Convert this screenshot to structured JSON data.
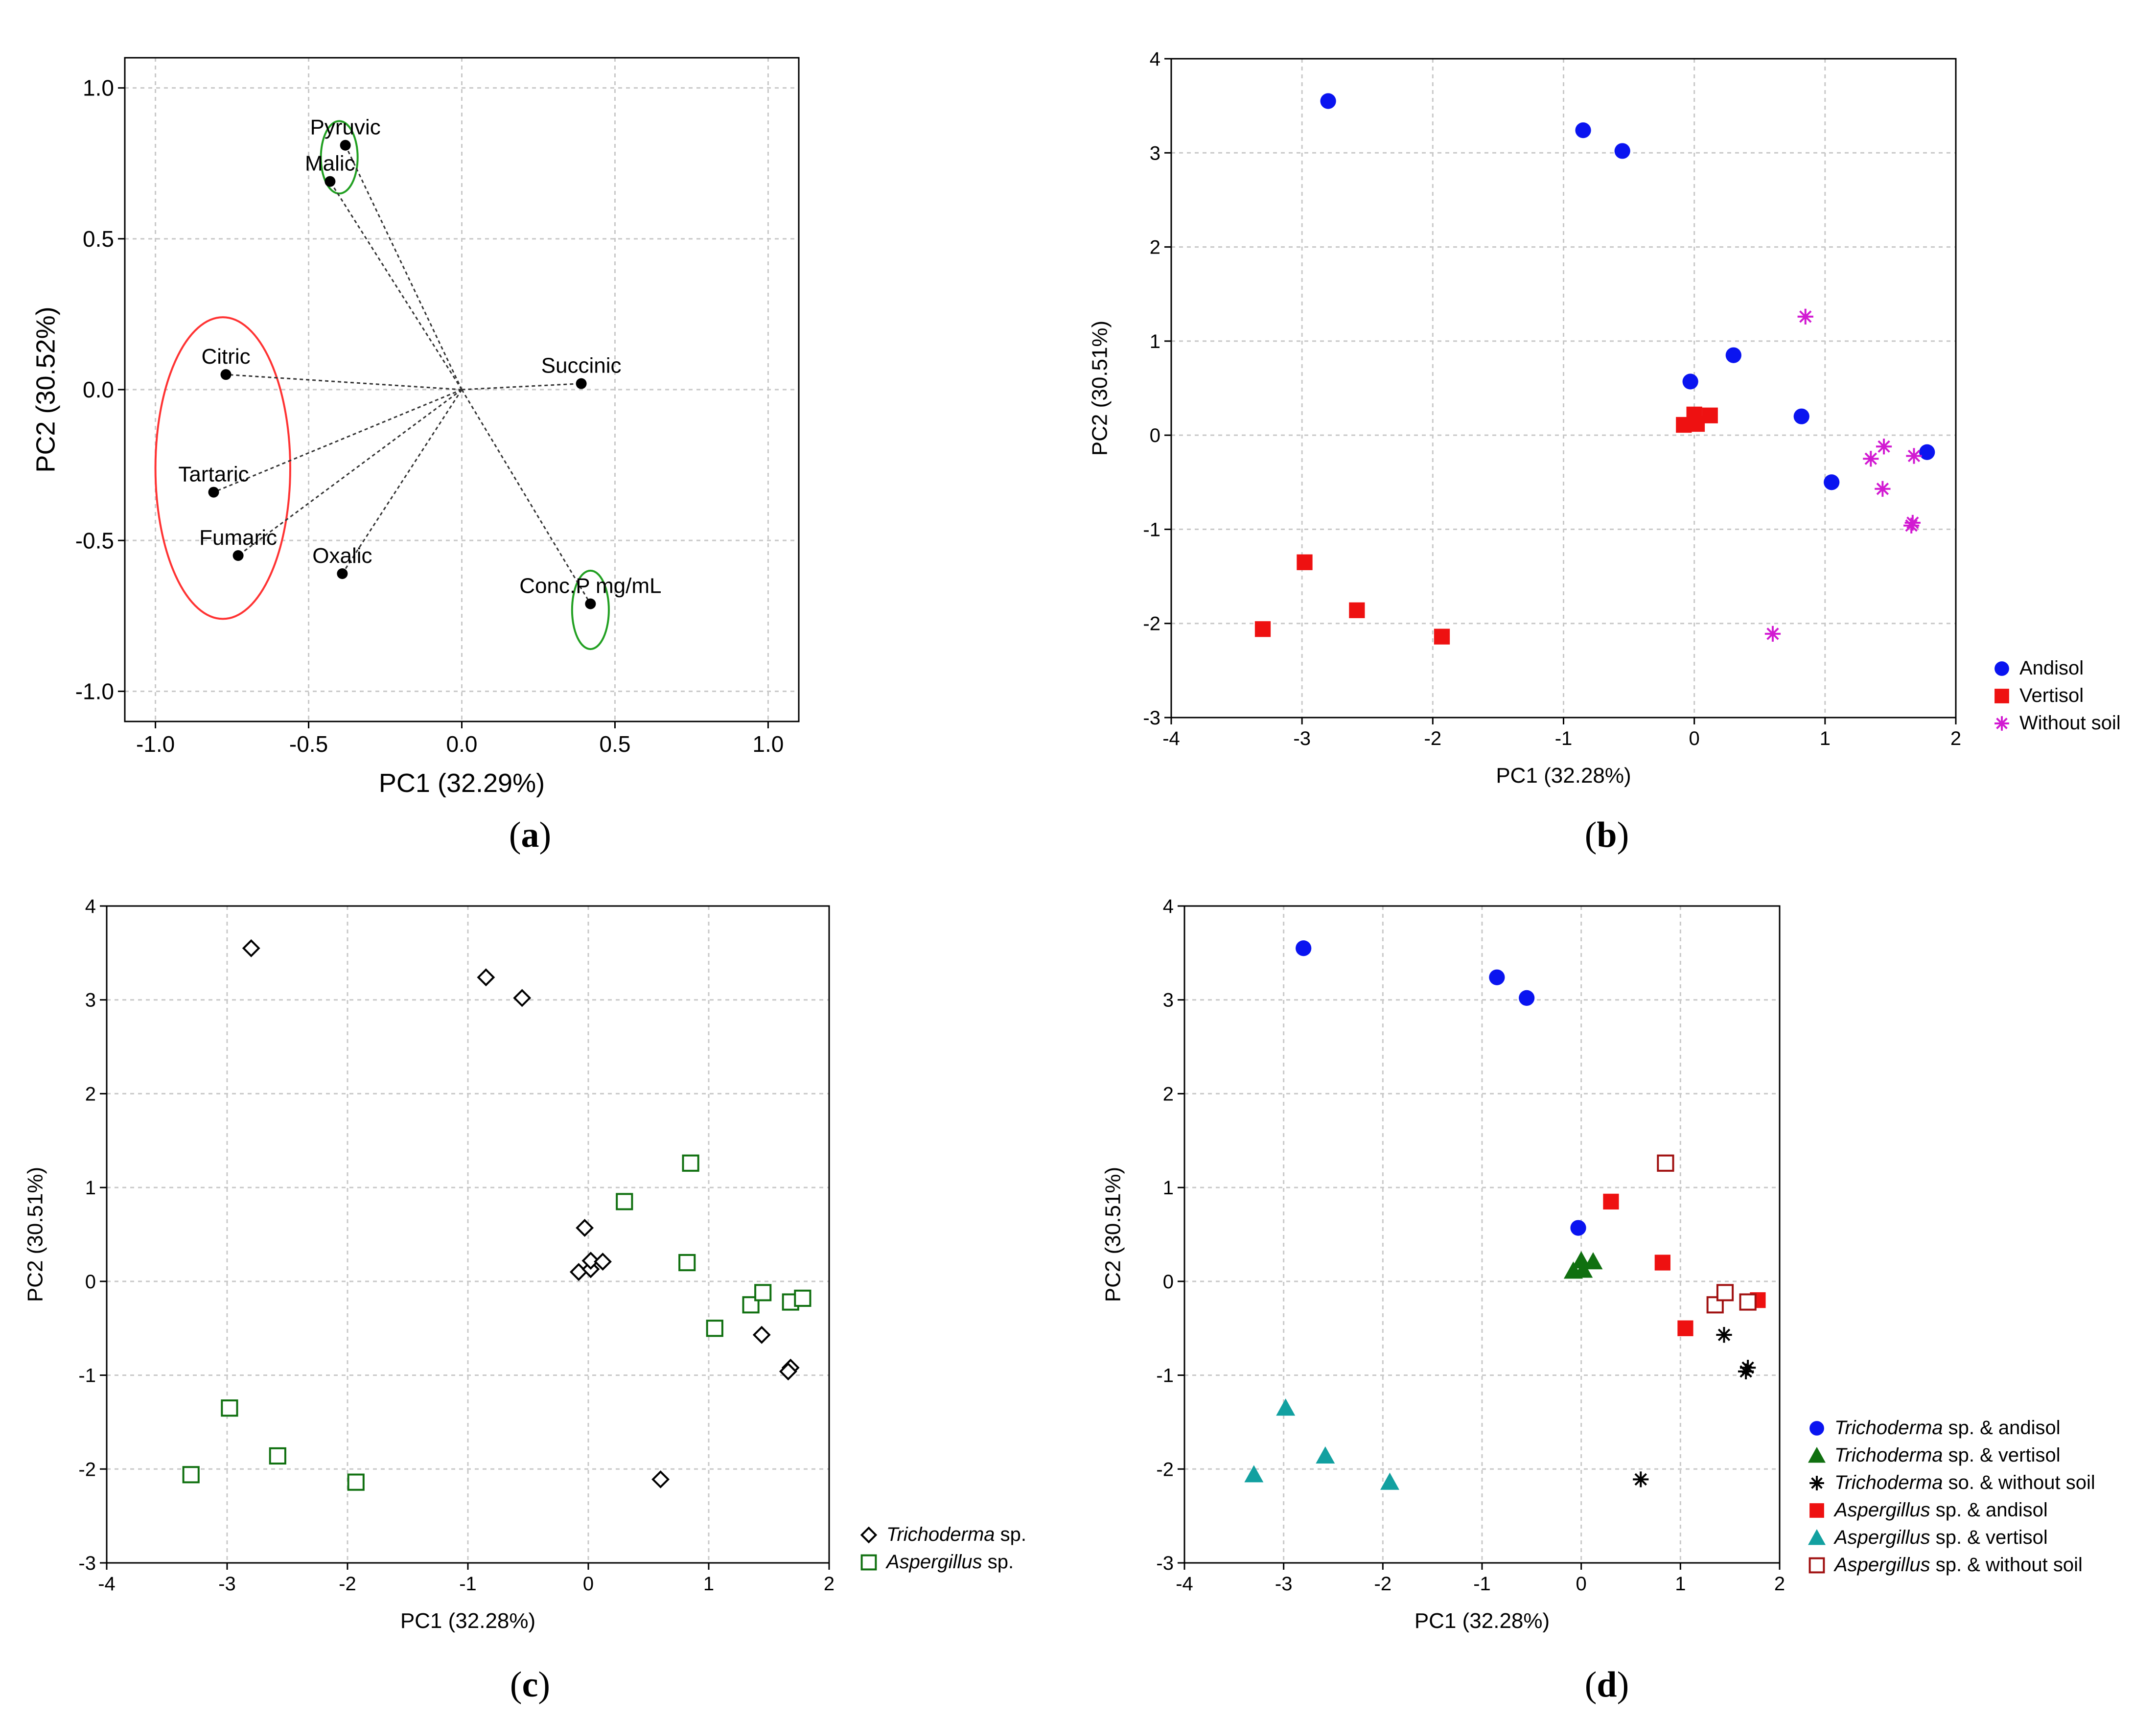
{
  "figure": {
    "panel_labels": {
      "a": "a",
      "b": "b",
      "c": "c",
      "d": "d"
    }
  },
  "colors": {
    "blue": "#0a14f0",
    "red": "#ee1111",
    "magenta": "#d21ad2",
    "green": "#107010",
    "teal": "#12a0a0",
    "darkred": "#a01010",
    "black": "#000000",
    "grid": "#c8c8c8",
    "ellipse_red": "#ff3333",
    "ellipse_green": "#22a022"
  },
  "chart_data": [
    {
      "id": "a",
      "type": "scatter",
      "title": "",
      "xlabel": "PC1 (32.29%)",
      "ylabel": "PC2 (30.52%)",
      "xlim": [
        -1.1,
        1.1
      ],
      "ylim": [
        -1.1,
        1.1
      ],
      "xticks": [
        -1.0,
        -0.5,
        0.0,
        0.5,
        1.0
      ],
      "xtick_labels": [
        "-1.0",
        "-0.5",
        "0.0",
        "0.5",
        "1.0"
      ],
      "yticks": [
        -1.0,
        -0.5,
        0.0,
        0.5,
        1.0
      ],
      "ytick_labels": [
        "-1.0",
        "-0.5",
        "0.0",
        "0.5",
        "1.0"
      ],
      "grid": true,
      "loadings": [
        {
          "label": "Pyruvic",
          "x": -0.38,
          "y": 0.81
        },
        {
          "label": "Malic",
          "x": -0.43,
          "y": 0.69
        },
        {
          "label": "Citric",
          "x": -0.77,
          "y": 0.05
        },
        {
          "label": "Succinic",
          "x": 0.39,
          "y": 0.02
        },
        {
          "label": "Tartaric",
          "x": -0.81,
          "y": -0.34
        },
        {
          "label": "Fumaric",
          "x": -0.73,
          "y": -0.55
        },
        {
          "label": "Oxalic",
          "x": -0.39,
          "y": -0.61
        },
        {
          "label": "Conc.P mg/mL",
          "x": 0.42,
          "y": -0.71
        }
      ],
      "ellipses": [
        {
          "color": "ellipse_red",
          "cx": -0.78,
          "cy": -0.26,
          "rx": 0.22,
          "ry": 0.5
        },
        {
          "color": "ellipse_green",
          "cx": -0.4,
          "cy": 0.77,
          "rx": 0.06,
          "ry": 0.12
        },
        {
          "color": "ellipse_green",
          "cx": 0.42,
          "cy": -0.73,
          "rx": 0.06,
          "ry": 0.13
        }
      ]
    },
    {
      "id": "b",
      "type": "scatter",
      "title": "",
      "xlabel": "PC1 (32.28%)",
      "ylabel": "PC2 (30.51%)",
      "xlim": [
        -4,
        2
      ],
      "ylim": [
        -3,
        4
      ],
      "xticks": [
        -4,
        -3,
        -2,
        -1,
        0,
        1,
        2
      ],
      "xtick_labels": [
        "-4",
        "-3",
        "-2",
        "-1",
        "0",
        "1",
        "2"
      ],
      "yticks": [
        -3,
        -2,
        -1,
        0,
        1,
        2,
        3,
        4
      ],
      "ytick_labels": [
        "-3",
        "-2",
        "-1",
        "0",
        "1",
        "2",
        "3",
        "4"
      ],
      "grid": true,
      "legend_position": "outside-bottom-right",
      "series": [
        {
          "name": "Andisol",
          "italic": "",
          "marker": "circle",
          "color": "blue",
          "points": [
            [
              -2.8,
              3.55
            ],
            [
              -0.85,
              3.24
            ],
            [
              -0.55,
              3.02
            ],
            [
              -0.03,
              0.57
            ],
            [
              0.3,
              0.85
            ],
            [
              0.82,
              0.2
            ],
            [
              1.05,
              -0.5
            ],
            [
              1.78,
              -0.18
            ]
          ]
        },
        {
          "name": "Vertisol",
          "italic": "",
          "marker": "square",
          "color": "red",
          "points": [
            [
              -3.3,
              -2.06
            ],
            [
              -2.98,
              -1.35
            ],
            [
              -2.58,
              -1.86
            ],
            [
              -1.93,
              -2.14
            ],
            [
              -0.08,
              0.11
            ],
            [
              0.02,
              0.12
            ],
            [
              0.0,
              0.22
            ],
            [
              0.12,
              0.21
            ]
          ]
        },
        {
          "name": "Without soil",
          "italic": "",
          "marker": "asterisk",
          "color": "magenta",
          "points": [
            [
              0.85,
              1.26
            ],
            [
              1.35,
              -0.25
            ],
            [
              1.45,
              -0.12
            ],
            [
              1.44,
              -0.57
            ],
            [
              1.68,
              -0.22
            ],
            [
              1.67,
              -0.93
            ],
            [
              1.66,
              -0.96
            ],
            [
              0.6,
              -2.11
            ]
          ]
        }
      ]
    },
    {
      "id": "c",
      "type": "scatter",
      "title": "",
      "xlabel": "PC1 (32.28%)",
      "ylabel": "PC2 (30.51%)",
      "xlim": [
        -4,
        2
      ],
      "ylim": [
        -3,
        4
      ],
      "xticks": [
        -4,
        -3,
        -2,
        -1,
        0,
        1,
        2
      ],
      "xtick_labels": [
        "-4",
        "-3",
        "-2",
        "-1",
        "0",
        "1",
        "2"
      ],
      "yticks": [
        -3,
        -2,
        -1,
        0,
        1,
        2,
        3,
        4
      ],
      "ytick_labels": [
        "-3",
        "-2",
        "-1",
        "0",
        "1",
        "2",
        "3",
        "4"
      ],
      "grid": true,
      "legend_position": "outside-bottom-right",
      "series": [
        {
          "name": " sp.",
          "italic": "Trichoderma",
          "marker": "diamond-open",
          "color": "black",
          "points": [
            [
              -2.8,
              3.55
            ],
            [
              -0.85,
              3.24
            ],
            [
              -0.55,
              3.02
            ],
            [
              -0.03,
              0.57
            ],
            [
              -0.08,
              0.1
            ],
            [
              0.02,
              0.13
            ],
            [
              0.02,
              0.22
            ],
            [
              0.12,
              0.21
            ],
            [
              1.44,
              -0.57
            ],
            [
              1.68,
              -0.92
            ],
            [
              1.66,
              -0.96
            ],
            [
              0.6,
              -2.11
            ]
          ]
        },
        {
          "name": " sp.",
          "italic": "Aspergillus",
          "marker": "square-open",
          "color": "green",
          "points": [
            [
              -3.3,
              -2.06
            ],
            [
              -2.98,
              -1.35
            ],
            [
              -2.58,
              -1.86
            ],
            [
              -1.93,
              -2.14
            ],
            [
              0.3,
              0.85
            ],
            [
              0.85,
              1.26
            ],
            [
              0.82,
              0.2
            ],
            [
              1.05,
              -0.5
            ],
            [
              1.35,
              -0.25
            ],
            [
              1.45,
              -0.12
            ],
            [
              1.68,
              -0.22
            ],
            [
              1.78,
              -0.18
            ]
          ]
        }
      ]
    },
    {
      "id": "d",
      "type": "scatter",
      "title": "",
      "xlabel": "PC1 (32.28%)",
      "ylabel": "PC2 (30.51%)",
      "xlim": [
        -4,
        2
      ],
      "ylim": [
        -3,
        4
      ],
      "xticks": [
        -4,
        -3,
        -2,
        -1,
        0,
        1,
        2
      ],
      "xtick_labels": [
        "-4",
        "-3",
        "-2",
        "-1",
        "0",
        "1",
        "2"
      ],
      "yticks": [
        -3,
        -2,
        -1,
        0,
        1,
        2,
        3,
        4
      ],
      "ytick_labels": [
        "-3",
        "-2",
        "-1",
        "0",
        "1",
        "2",
        "3",
        "4"
      ],
      "grid": true,
      "legend_position": "outside-bottom-right",
      "series": [
        {
          "name": " sp. & andisol",
          "italic": "Trichoderma",
          "marker": "circle",
          "color": "blue",
          "points": [
            [
              -2.8,
              3.55
            ],
            [
              -0.85,
              3.24
            ],
            [
              -0.55,
              3.02
            ],
            [
              -0.03,
              0.57
            ]
          ]
        },
        {
          "name": " sp. & vertisol",
          "italic": "Trichoderma",
          "marker": "triangle",
          "color": "green",
          "points": [
            [
              -0.08,
              0.11
            ],
            [
              0.02,
              0.12
            ],
            [
              0.0,
              0.22
            ],
            [
              0.12,
              0.21
            ]
          ]
        },
        {
          "name": " so. & without soil",
          "italic": "Trichoderma",
          "marker": "asterisk",
          "color": "black",
          "points": [
            [
              1.44,
              -0.57
            ],
            [
              1.68,
              -0.92
            ],
            [
              1.66,
              -0.96
            ],
            [
              0.6,
              -2.11
            ]
          ]
        },
        {
          "name": " sp. & andisol",
          "italic": "Aspergillus",
          "marker": "square",
          "color": "red",
          "points": [
            [
              0.3,
              0.85
            ],
            [
              0.82,
              0.2
            ],
            [
              1.05,
              -0.5
            ],
            [
              1.78,
              -0.2
            ]
          ]
        },
        {
          "name": " sp. & vertisol",
          "italic": "Aspergillus",
          "marker": "triangle",
          "color": "teal",
          "points": [
            [
              -3.3,
              -2.06
            ],
            [
              -2.98,
              -1.35
            ],
            [
              -2.58,
              -1.86
            ],
            [
              -1.93,
              -2.14
            ]
          ]
        },
        {
          "name": " sp. & without soil",
          "italic": "Aspergillus",
          "marker": "square-open",
          "color": "darkred",
          "points": [
            [
              0.85,
              1.26
            ],
            [
              1.35,
              -0.25
            ],
            [
              1.45,
              -0.12
            ],
            [
              1.68,
              -0.22
            ]
          ]
        }
      ]
    }
  ]
}
